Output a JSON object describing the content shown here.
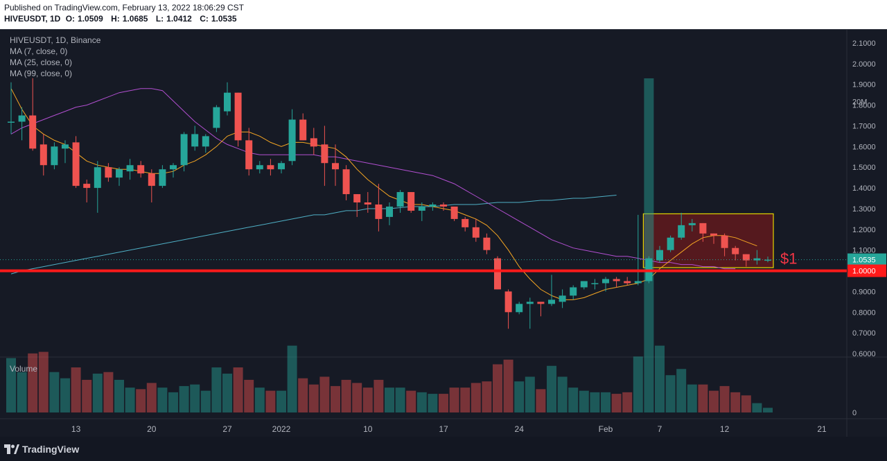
{
  "header": {
    "published": "Published on TradingView.com, February 13, 2022 18:06:29 CST",
    "symbol_line": "HIVEUSDT, 1D",
    "o_label": "O:",
    "o_value": "1.0509",
    "h_label": "H:",
    "h_value": "1.0685",
    "l_label": "L:",
    "l_value": "1.0412",
    "c_label": "C:",
    "c_value": "1.0535"
  },
  "legend": {
    "title": "HIVEUSDT, 1D, Binance",
    "ma7": "MA (7, close, 0)",
    "ma25": "MA (25, close, 0)",
    "ma99": "MA (99, close, 0)",
    "volume": "Volume"
  },
  "annotation": {
    "text": "$1",
    "color": "#f23645"
  },
  "footer": {
    "brand": "TradingView"
  },
  "colors": {
    "up": "#26a69a",
    "down": "#ef5350",
    "ma7": "#f5a623",
    "ma25": "#b24fd1",
    "ma99": "#4fb0c6",
    "support": "#ff1a1a",
    "box_fill": "#8b1a1a",
    "box_border": "#e6d600"
  },
  "chart_data": {
    "type": "candlestick",
    "price_axis": {
      "ticks": [
        "2.1000",
        "2.0000",
        "1.9000",
        "1.8000",
        "1.7000",
        "1.6000",
        "1.5000",
        "1.4000",
        "1.3000",
        "1.2000",
        "1.1000",
        "1.0000",
        "0.9000",
        "0.8000",
        "0.7000",
        "0.6000"
      ],
      "range": [
        0.6,
        2.1
      ]
    },
    "last_price_label": "1.0535",
    "support_label": "1.0000",
    "support_level": 1.0,
    "volume_axis": {
      "ticks": [
        "20M",
        "0"
      ]
    },
    "x_ticks": [
      "13",
      "20",
      "27",
      "2022",
      "10",
      "17",
      "24",
      "Feb",
      "7",
      "12",
      "21"
    ],
    "candles": [
      {
        "o": 1.72,
        "h": 1.91,
        "l": 1.66,
        "c": 1.72,
        "v": 3.5
      },
      {
        "o": 1.72,
        "h": 1.79,
        "l": 1.63,
        "c": 1.75,
        "v": 2.6
      },
      {
        "o": 1.75,
        "h": 1.93,
        "l": 1.58,
        "c": 1.59,
        "v": 3.8
      },
      {
        "o": 1.61,
        "h": 1.66,
        "l": 1.46,
        "c": 1.51,
        "v": 3.9
      },
      {
        "o": 1.51,
        "h": 1.62,
        "l": 1.49,
        "c": 1.6,
        "v": 2.6
      },
      {
        "o": 1.59,
        "h": 1.63,
        "l": 1.52,
        "c": 1.61,
        "v": 2.2
      },
      {
        "o": 1.62,
        "h": 1.65,
        "l": 1.4,
        "c": 1.41,
        "v": 2.9
      },
      {
        "o": 1.42,
        "h": 1.44,
        "l": 1.33,
        "c": 1.4,
        "v": 2.1
      },
      {
        "o": 1.4,
        "h": 1.53,
        "l": 1.28,
        "c": 1.5,
        "v": 2.5
      },
      {
        "o": 1.5,
        "h": 1.52,
        "l": 1.43,
        "c": 1.45,
        "v": 2.6
      },
      {
        "o": 1.45,
        "h": 1.5,
        "l": 1.41,
        "c": 1.49,
        "v": 2.1
      },
      {
        "o": 1.48,
        "h": 1.54,
        "l": 1.44,
        "c": 1.51,
        "v": 1.6
      },
      {
        "o": 1.51,
        "h": 1.53,
        "l": 1.45,
        "c": 1.47,
        "v": 1.5
      },
      {
        "o": 1.47,
        "h": 1.49,
        "l": 1.33,
        "c": 1.41,
        "v": 1.9
      },
      {
        "o": 1.41,
        "h": 1.51,
        "l": 1.4,
        "c": 1.49,
        "v": 1.6
      },
      {
        "o": 1.49,
        "h": 1.52,
        "l": 1.45,
        "c": 1.51,
        "v": 1.3
      },
      {
        "o": 1.51,
        "h": 1.67,
        "l": 1.48,
        "c": 1.66,
        "v": 1.7
      },
      {
        "o": 1.6,
        "h": 1.7,
        "l": 1.58,
        "c": 1.66,
        "v": 1.8
      },
      {
        "o": 1.6,
        "h": 1.66,
        "l": 1.57,
        "c": 1.65,
        "v": 1.4
      },
      {
        "o": 1.69,
        "h": 1.8,
        "l": 1.67,
        "c": 1.79,
        "v": 2.9
      },
      {
        "o": 1.77,
        "h": 1.91,
        "l": 1.75,
        "c": 1.86,
        "v": 2.5
      },
      {
        "o": 1.86,
        "h": 1.86,
        "l": 1.6,
        "c": 1.63,
        "v": 2.9
      },
      {
        "o": 1.63,
        "h": 1.69,
        "l": 1.46,
        "c": 1.49,
        "v": 2.1
      },
      {
        "o": 1.49,
        "h": 1.53,
        "l": 1.47,
        "c": 1.51,
        "v": 1.6
      },
      {
        "o": 1.51,
        "h": 1.54,
        "l": 1.46,
        "c": 1.49,
        "v": 1.4
      },
      {
        "o": 1.49,
        "h": 1.53,
        "l": 1.47,
        "c": 1.52,
        "v": 1.4
      },
      {
        "o": 1.53,
        "h": 1.78,
        "l": 1.51,
        "c": 1.73,
        "v": 4.3
      },
      {
        "o": 1.73,
        "h": 1.76,
        "l": 1.63,
        "c": 1.63,
        "v": 2.2
      },
      {
        "o": 1.64,
        "h": 1.69,
        "l": 1.56,
        "c": 1.6,
        "v": 1.8
      },
      {
        "o": 1.61,
        "h": 1.7,
        "l": 1.41,
        "c": 1.52,
        "v": 2.3
      },
      {
        "o": 1.52,
        "h": 1.61,
        "l": 1.41,
        "c": 1.49,
        "v": 1.7
      },
      {
        "o": 1.49,
        "h": 1.51,
        "l": 1.34,
        "c": 1.37,
        "v": 2.1
      },
      {
        "o": 1.37,
        "h": 1.37,
        "l": 1.26,
        "c": 1.33,
        "v": 1.9
      },
      {
        "o": 1.33,
        "h": 1.38,
        "l": 1.28,
        "c": 1.32,
        "v": 1.6
      },
      {
        "o": 1.32,
        "h": 1.42,
        "l": 1.19,
        "c": 1.25,
        "v": 2.1
      },
      {
        "o": 1.26,
        "h": 1.33,
        "l": 1.22,
        "c": 1.31,
        "v": 1.6
      },
      {
        "o": 1.31,
        "h": 1.39,
        "l": 1.28,
        "c": 1.38,
        "v": 1.6
      },
      {
        "o": 1.38,
        "h": 1.38,
        "l": 1.28,
        "c": 1.29,
        "v": 1.4
      },
      {
        "o": 1.29,
        "h": 1.33,
        "l": 1.24,
        "c": 1.31,
        "v": 1.3
      },
      {
        "o": 1.31,
        "h": 1.33,
        "l": 1.29,
        "c": 1.32,
        "v": 1.2
      },
      {
        "o": 1.32,
        "h": 1.33,
        "l": 1.29,
        "c": 1.31,
        "v": 1.2
      },
      {
        "o": 1.31,
        "h": 1.31,
        "l": 1.24,
        "c": 1.25,
        "v": 1.6
      },
      {
        "o": 1.25,
        "h": 1.26,
        "l": 1.19,
        "c": 1.21,
        "v": 1.6
      },
      {
        "o": 1.21,
        "h": 1.25,
        "l": 1.14,
        "c": 1.16,
        "v": 1.9
      },
      {
        "o": 1.16,
        "h": 1.18,
        "l": 1.08,
        "c": 1.1,
        "v": 2.0
      },
      {
        "o": 1.06,
        "h": 1.07,
        "l": 0.91,
        "c": 0.91,
        "v": 3.1
      },
      {
        "o": 0.9,
        "h": 0.91,
        "l": 0.72,
        "c": 0.8,
        "v": 3.4
      },
      {
        "o": 0.8,
        "h": 0.85,
        "l": 0.79,
        "c": 0.84,
        "v": 2.0
      },
      {
        "o": 0.84,
        "h": 0.87,
        "l": 0.72,
        "c": 0.85,
        "v": 2.3
      },
      {
        "o": 0.85,
        "h": 0.85,
        "l": 0.78,
        "c": 0.84,
        "v": 1.5
      },
      {
        "o": 0.84,
        "h": 0.98,
        "l": 0.83,
        "c": 0.86,
        "v": 3.0
      },
      {
        "o": 0.85,
        "h": 0.91,
        "l": 0.82,
        "c": 0.88,
        "v": 2.3
      },
      {
        "o": 0.88,
        "h": 0.93,
        "l": 0.86,
        "c": 0.92,
        "v": 1.6
      },
      {
        "o": 0.92,
        "h": 0.95,
        "l": 0.91,
        "c": 0.95,
        "v": 1.4
      },
      {
        "o": 0.94,
        "h": 0.96,
        "l": 0.91,
        "c": 0.94,
        "v": 1.3
      },
      {
        "o": 0.94,
        "h": 0.97,
        "l": 0.9,
        "c": 0.96,
        "v": 1.3
      },
      {
        "o": 0.96,
        "h": 0.97,
        "l": 0.92,
        "c": 0.95,
        "v": 1.2
      },
      {
        "o": 0.95,
        "h": 0.97,
        "l": 0.93,
        "c": 0.94,
        "v": 1.3
      },
      {
        "o": 0.94,
        "h": 1.27,
        "l": 0.93,
        "c": 0.95,
        "v": 3.6
      },
      {
        "o": 0.95,
        "h": 1.07,
        "l": 0.94,
        "c": 1.06,
        "v": 21.5
      },
      {
        "o": 1.05,
        "h": 1.12,
        "l": 1.04,
        "c": 1.1,
        "v": 4.3
      },
      {
        "o": 1.1,
        "h": 1.17,
        "l": 1.09,
        "c": 1.16,
        "v": 2.4
      },
      {
        "o": 1.16,
        "h": 1.28,
        "l": 1.15,
        "c": 1.22,
        "v": 2.8
      },
      {
        "o": 1.22,
        "h": 1.25,
        "l": 1.19,
        "c": 1.23,
        "v": 1.8
      },
      {
        "o": 1.23,
        "h": 1.23,
        "l": 1.14,
        "c": 1.18,
        "v": 1.8
      },
      {
        "o": 1.18,
        "h": 1.18,
        "l": 1.13,
        "c": 1.17,
        "v": 1.4
      },
      {
        "o": 1.17,
        "h": 1.18,
        "l": 1.07,
        "c": 1.11,
        "v": 1.7
      },
      {
        "o": 1.11,
        "h": 1.12,
        "l": 1.05,
        "c": 1.08,
        "v": 1.3
      },
      {
        "o": 1.08,
        "h": 1.08,
        "l": 1.02,
        "c": 1.05,
        "v": 1.1
      },
      {
        "o": 1.05,
        "h": 1.1,
        "l": 1.03,
        "c": 1.06,
        "v": 0.6
      },
      {
        "o": 1.0509,
        "h": 1.0685,
        "l": 1.0412,
        "c": 1.0535,
        "v": 0.3
      }
    ],
    "ma7_values": [
      1.88,
      1.78,
      1.7,
      1.66,
      1.63,
      1.61,
      1.57,
      1.53,
      1.51,
      1.5,
      1.49,
      1.49,
      1.48,
      1.47,
      1.47,
      1.48,
      1.51,
      1.53,
      1.56,
      1.6,
      1.65,
      1.67,
      1.67,
      1.65,
      1.62,
      1.6,
      1.62,
      1.62,
      1.61,
      1.6,
      1.59,
      1.55,
      1.49,
      1.44,
      1.4,
      1.36,
      1.34,
      1.32,
      1.32,
      1.31,
      1.3,
      1.29,
      1.27,
      1.25,
      1.22,
      1.17,
      1.1,
      1.02,
      0.96,
      0.91,
      0.88,
      0.86,
      0.86,
      0.87,
      0.89,
      0.91,
      0.92,
      0.93,
      0.94,
      0.96,
      1.01,
      1.05,
      1.09,
      1.13,
      1.16,
      1.17,
      1.17,
      1.16,
      1.14,
      1.12
    ],
    "ma25_values": [
      1.66,
      1.69,
      1.71,
      1.73,
      1.75,
      1.77,
      1.79,
      1.8,
      1.82,
      1.84,
      1.86,
      1.87,
      1.88,
      1.88,
      1.87,
      1.82,
      1.77,
      1.72,
      1.68,
      1.64,
      1.61,
      1.59,
      1.57,
      1.56,
      1.56,
      1.56,
      1.56,
      1.56,
      1.56,
      1.55,
      1.55,
      1.54,
      1.53,
      1.52,
      1.51,
      1.5,
      1.49,
      1.48,
      1.47,
      1.46,
      1.44,
      1.42,
      1.39,
      1.36,
      1.33,
      1.3,
      1.27,
      1.24,
      1.21,
      1.18,
      1.15,
      1.13,
      1.11,
      1.1,
      1.09,
      1.08,
      1.07,
      1.07,
      1.06,
      1.05,
      1.04,
      1.04,
      1.03,
      1.03,
      1.02,
      1.02,
      1.01,
      1.01
    ],
    "ma99_values": [
      0.985,
      1.0,
      1.01,
      1.02,
      1.03,
      1.04,
      1.05,
      1.06,
      1.07,
      1.08,
      1.09,
      1.1,
      1.11,
      1.12,
      1.13,
      1.14,
      1.15,
      1.16,
      1.17,
      1.18,
      1.19,
      1.2,
      1.21,
      1.22,
      1.23,
      1.24,
      1.25,
      1.26,
      1.27,
      1.27,
      1.28,
      1.29,
      1.29,
      1.3,
      1.3,
      1.3,
      1.305,
      1.31,
      1.31,
      1.31,
      1.315,
      1.32,
      1.32,
      1.32,
      1.325,
      1.33,
      1.33,
      1.33,
      1.335,
      1.34,
      1.34,
      1.345,
      1.35,
      1.35,
      1.355,
      1.36,
      1.365
    ]
  }
}
